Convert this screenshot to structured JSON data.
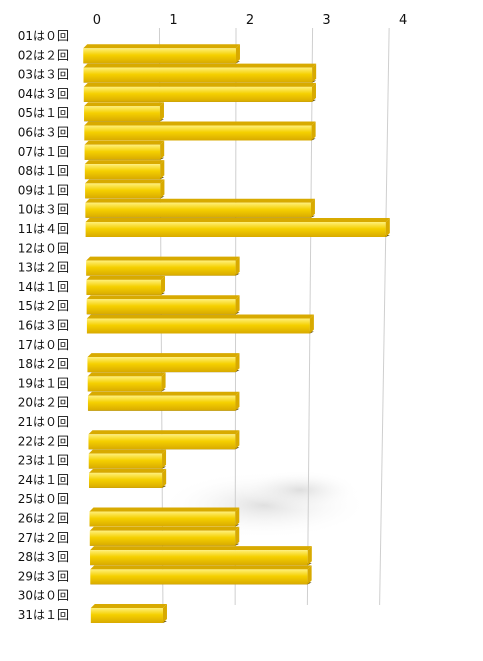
{
  "chart_data": {
    "type": "bar",
    "orientation": "horizontal",
    "categories": [
      "01は０回",
      "02は２回",
      "03は３回",
      "04は３回",
      "05は１回",
      "06は３回",
      "07は１回",
      "08は１回",
      "09は１回",
      "10は３回",
      "11は４回",
      "12は０回",
      "13は２回",
      "14は１回",
      "15は２回",
      "16は３回",
      "17は０回",
      "18は２回",
      "19は１回",
      "20は２回",
      "21は０回",
      "22は２回",
      "23は１回",
      "24は１回",
      "25は０回",
      "26は２回",
      "27は２回",
      "28は３回",
      "29は３回",
      "30は０回",
      "31は１回"
    ],
    "values": [
      0,
      2,
      3,
      3,
      1,
      3,
      1,
      1,
      1,
      3,
      4,
      0,
      2,
      1,
      2,
      3,
      0,
      2,
      1,
      2,
      0,
      2,
      1,
      1,
      0,
      2,
      2,
      3,
      3,
      0,
      1
    ],
    "xticks": [
      "0",
      "1",
      "2",
      "3",
      "4"
    ],
    "xlim": [
      0,
      4
    ],
    "grid": true,
    "legend": "none",
    "colors": {
      "bar_face": "#f5d000",
      "bar_highlight": "#fff07a",
      "bar_top": "#d8aa00",
      "bar_shadow": "#4a3a00",
      "grid": "#cfcfcf"
    }
  }
}
